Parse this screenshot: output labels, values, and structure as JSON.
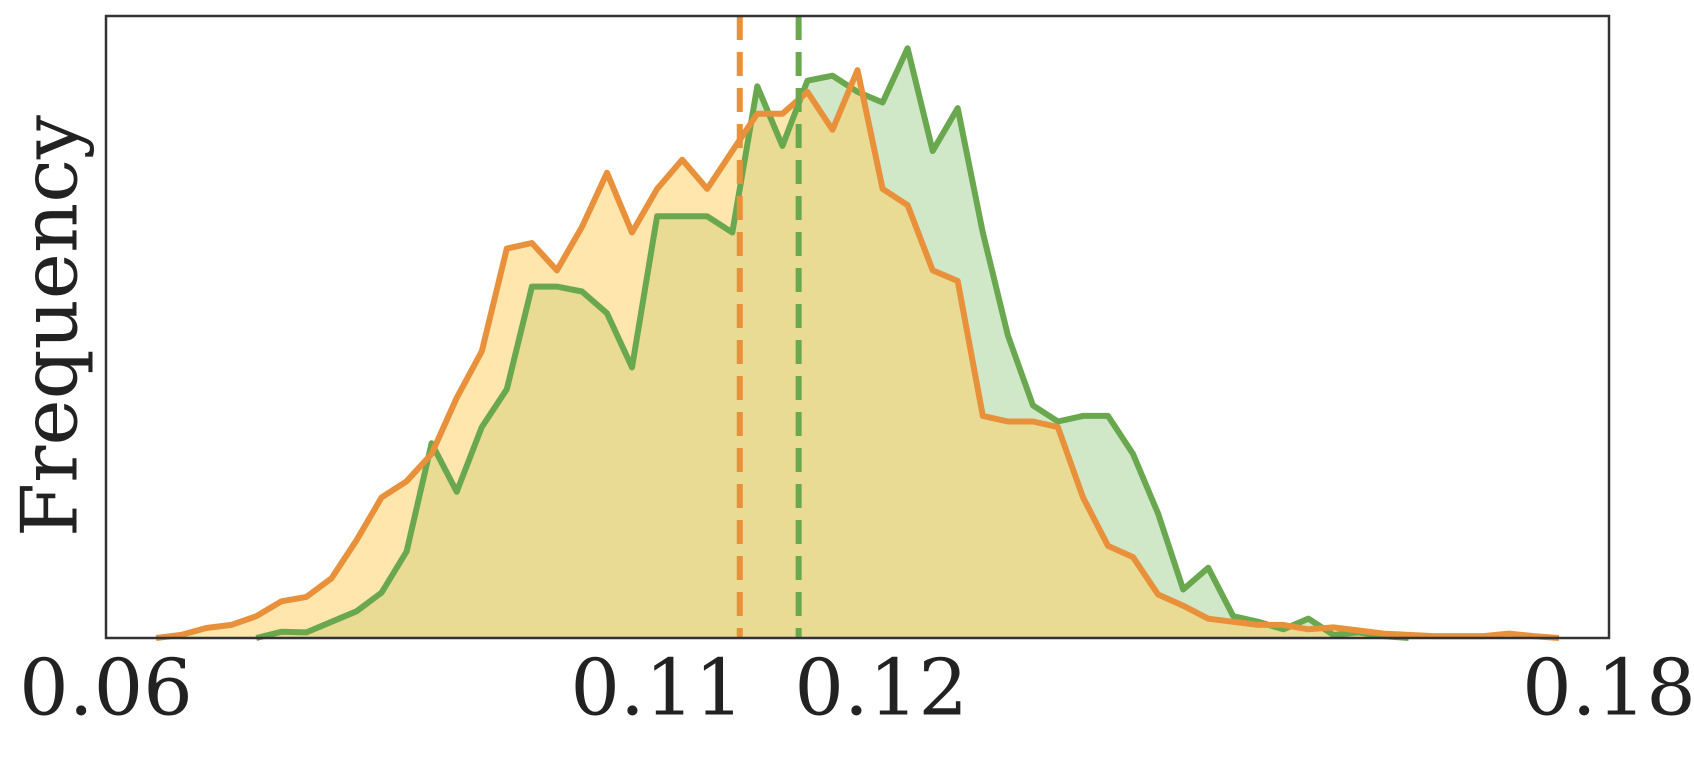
{
  "chart_data": {
    "type": "area",
    "y_label": "Frequency",
    "x": [
      0.064,
      0.066,
      0.068,
      0.07,
      0.072,
      0.074,
      0.076,
      0.078,
      0.08,
      0.082,
      0.084,
      0.086,
      0.088,
      0.09,
      0.092,
      0.094,
      0.096,
      0.098,
      0.1,
      0.102,
      0.104,
      0.106,
      0.108,
      0.11,
      0.112,
      0.114,
      0.116,
      0.118,
      0.12,
      0.122,
      0.124,
      0.126,
      0.128,
      0.13,
      0.132,
      0.134,
      0.136,
      0.138,
      0.14,
      0.142,
      0.144,
      0.146,
      0.148,
      0.15,
      0.152,
      0.154,
      0.156,
      0.158,
      0.16,
      0.162,
      0.164,
      0.166,
      0.168,
      0.17,
      0.172,
      0.174,
      0.176
    ],
    "series": [
      {
        "color": "#6aa84f",
        "fill": "#a9d49b",
        "mean": 0.1153,
        "values": [
          null,
          null,
          null,
          null,
          0,
          0.01,
          0.009,
          0.026,
          0.043,
          0.073,
          0.139,
          0.313,
          0.235,
          0.339,
          0.4,
          0.565,
          0.565,
          0.557,
          0.522,
          0.435,
          0.678,
          0.678,
          0.678,
          0.652,
          0.887,
          0.791,
          0.896,
          0.904,
          0.878,
          0.861,
          0.948,
          0.783,
          0.852,
          0.652,
          0.487,
          0.374,
          0.348,
          0.357,
          0.357,
          0.296,
          0.2,
          0.078,
          0.113,
          0.035,
          0.026,
          0.014,
          0.031,
          0.005,
          0.009,
          0.003,
          0,
          null,
          null,
          null,
          null,
          null,
          null
        ]
      },
      {
        "color": "#e8903a",
        "fill": "#fdd26a",
        "mean": 0.1106,
        "values": [
          0,
          0.005,
          0.016,
          0.021,
          0.035,
          0.059,
          0.066,
          0.096,
          0.157,
          0.226,
          0.252,
          0.296,
          0.386,
          0.461,
          0.626,
          0.635,
          0.591,
          0.661,
          0.748,
          0.652,
          0.722,
          0.769,
          0.722,
          0.783,
          0.843,
          0.843,
          0.878,
          0.817,
          0.913,
          0.722,
          0.696,
          0.591,
          0.574,
          0.357,
          0.348,
          0.348,
          0.339,
          0.226,
          0.148,
          0.13,
          0.07,
          0.052,
          0.031,
          0.026,
          0.021,
          0.021,
          0.014,
          0.017,
          0.012,
          0.007,
          0.005,
          0.003,
          0.003,
          0.003,
          0.007,
          0.003,
          0
        ]
      }
    ],
    "xlim": [
      0.06,
      0.18
    ],
    "ylim": [
      0,
      1
    ],
    "xticks": [
      {
        "value": 0.06,
        "label": "0.06"
      },
      {
        "value": 0.1106,
        "label": "0.11"
      },
      {
        "value": 0.1153,
        "label": "0.12"
      },
      {
        "value": 0.18,
        "label": "0.18"
      }
    ]
  }
}
